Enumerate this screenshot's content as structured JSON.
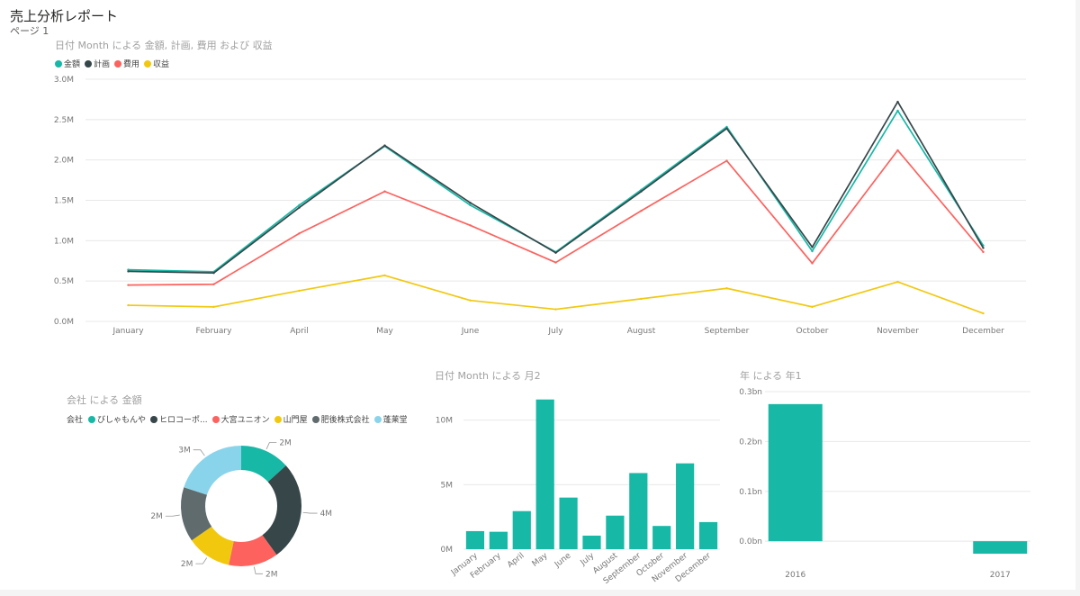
{
  "report": {
    "title": "売上分析レポート",
    "page": "ページ 1"
  },
  "chart_data": [
    {
      "type": "line",
      "title": "日付 Month による 金額, 計画, 費用 および 収益",
      "categories": [
        "January",
        "February",
        "April",
        "May",
        "June",
        "July",
        "August",
        "September",
        "October",
        "November",
        "December"
      ],
      "ylim": [
        0,
        3000000
      ],
      "yticks": [
        "0.0M",
        "0.5M",
        "1.0M",
        "1.5M",
        "2.0M",
        "2.5M",
        "3.0M"
      ],
      "grid": true,
      "legend_position": "top-left",
      "series": [
        {
          "name": "金額",
          "color": "#17b8a6",
          "values": [
            640000,
            615000,
            1440000,
            2170000,
            1440000,
            860000,
            1630000,
            2410000,
            870000,
            2610000,
            940000
          ]
        },
        {
          "name": "計画",
          "color": "#374649",
          "values": [
            620000,
            600000,
            1410000,
            2180000,
            1470000,
            850000,
            1610000,
            2390000,
            920000,
            2720000,
            910000
          ]
        },
        {
          "name": "費用",
          "color": "#fd625e",
          "values": [
            450000,
            460000,
            1090000,
            1610000,
            1190000,
            730000,
            1370000,
            1990000,
            720000,
            2120000,
            860000
          ]
        },
        {
          "name": "収益",
          "color": "#f2c80f",
          "values": [
            200000,
            180000,
            380000,
            570000,
            260000,
            150000,
            280000,
            410000,
            180000,
            490000,
            100000
          ]
        }
      ]
    },
    {
      "type": "pie",
      "title": "会社 による 金額",
      "legend_title": "会社",
      "legend_position": "top-left",
      "slices": [
        {
          "name": "びしゃもんや",
          "value": 2.0,
          "label": "2M",
          "color": "#17b8a6"
        },
        {
          "name": "ヒロコーポ...",
          "value": 4.0,
          "label": "4M",
          "color": "#374649"
        },
        {
          "name": "大宮ユニオン",
          "value": 2.0,
          "label": "2M",
          "color": "#fd625e"
        },
        {
          "name": "山門屋",
          "value": 1.8,
          "label": "2M",
          "color": "#f2c80f"
        },
        {
          "name": "肥後株式会社",
          "value": 2.2,
          "label": "2M",
          "color": "#5f6b6d"
        },
        {
          "name": "蓬莱堂",
          "value": 3.0,
          "label": "3M",
          "color": "#8ad4eb"
        }
      ]
    },
    {
      "type": "bar",
      "title": "日付 Month による 月2",
      "categories": [
        "January",
        "February",
        "April",
        "May",
        "June",
        "July",
        "August",
        "September",
        "October",
        "November",
        "December"
      ],
      "values": [
        1400000,
        1350000,
        2950000,
        11600000,
        4000000,
        1050000,
        2600000,
        5900000,
        1800000,
        6650000,
        2100000
      ],
      "ylim": [
        0,
        12000000
      ],
      "yticks": [
        {
          "v": 0,
          "label": "0M"
        },
        {
          "v": 5000000,
          "label": "5M"
        },
        {
          "v": 10000000,
          "label": "10M"
        }
      ],
      "grid": true,
      "color": "#17b8a6"
    },
    {
      "type": "bar",
      "title": "年 による 年1",
      "categories": [
        "2016",
        "2017"
      ],
      "values": [
        0.275,
        -0.025
      ],
      "ylim": [
        -0.025,
        0.3
      ],
      "yticks": [
        {
          "v": 0,
          "label": "0.0bn"
        },
        {
          "v": 0.1,
          "label": "0.1bn"
        },
        {
          "v": 0.2,
          "label": "0.2bn"
        },
        {
          "v": 0.3,
          "label": "0.3bn"
        }
      ],
      "grid": true,
      "color": "#17b8a6"
    }
  ]
}
